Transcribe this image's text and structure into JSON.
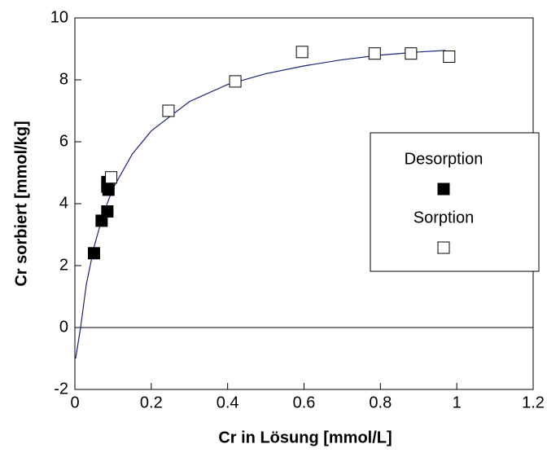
{
  "chart_data": {
    "type": "scatter",
    "x_label": "Cr in Lösung [mmol/L]",
    "y_label": "Cr sorbiert [mmol/kg]",
    "xlim": [
      0,
      1.2
    ],
    "xticks": [
      0,
      0.2,
      0.4,
      0.6,
      0.8,
      1,
      1.2
    ],
    "ylim": [
      -2,
      10
    ],
    "yticks": [
      -2,
      0,
      2,
      4,
      6,
      8,
      10
    ],
    "series": [
      {
        "name": "Desorption",
        "color": "#000000",
        "marker": "filled-square",
        "x": [
          0.05,
          0.07,
          0.085,
          0.085,
          0.085,
          0.088
        ],
        "values": [
          2.4,
          3.45,
          3.75,
          4.55,
          4.7,
          4.45
        ]
      },
      {
        "name": "Sorption",
        "color": "#000000",
        "marker": "open-square",
        "x": [
          0.095,
          0.245,
          0.42,
          0.595,
          0.785,
          0.88,
          0.98
        ],
        "values": [
          4.85,
          7.0,
          7.95,
          8.9,
          8.85,
          8.85,
          8.75
        ]
      }
    ],
    "fit_line": {
      "color": "#1a237e",
      "x": [
        0.002,
        0.015,
        0.03,
        0.05,
        0.075,
        0.1,
        0.15,
        0.2,
        0.3,
        0.4,
        0.5,
        0.6,
        0.7,
        0.8,
        0.9,
        0.97
      ],
      "values": [
        -1.0,
        0,
        1.4,
        2.6,
        3.7,
        4.5,
        5.6,
        6.35,
        7.3,
        7.85,
        8.2,
        8.45,
        8.65,
        8.8,
        8.9,
        8.95
      ]
    }
  }
}
